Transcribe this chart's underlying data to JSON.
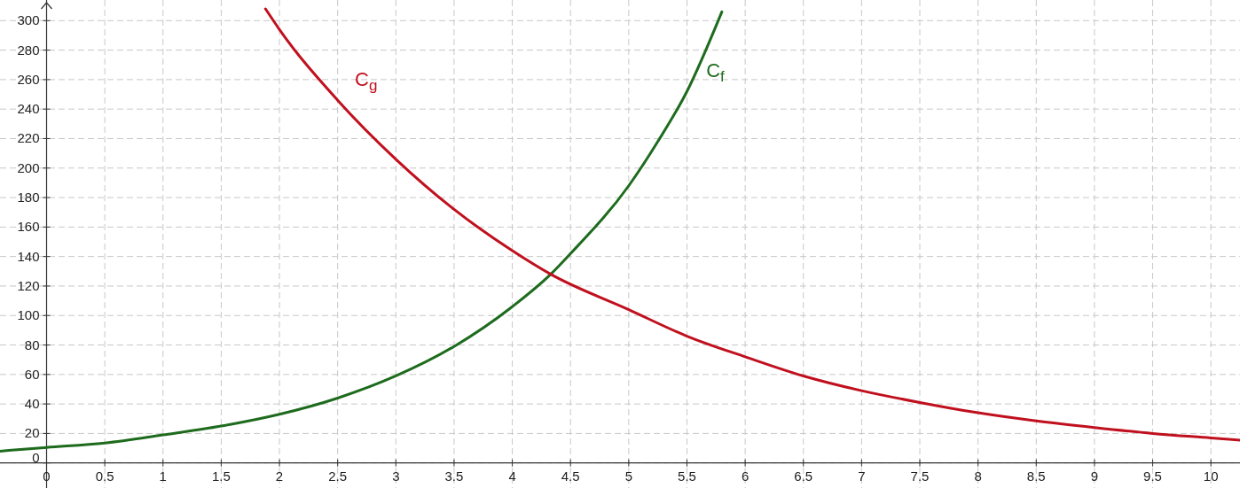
{
  "chart_data": {
    "type": "line",
    "xlim": [
      -0.4,
      10.25
    ],
    "ylim": [
      -17,
      314
    ],
    "xticks": [
      0,
      0.5,
      1,
      1.5,
      2,
      2.5,
      3,
      3.5,
      4,
      4.5,
      5,
      5.5,
      6,
      6.5,
      7,
      7.5,
      8,
      8.5,
      9,
      9.5,
      10
    ],
    "yticks": [
      0,
      20,
      40,
      60,
      80,
      100,
      120,
      140,
      160,
      180,
      200,
      220,
      240,
      260,
      280,
      300
    ],
    "grid": true,
    "line_style": "solid",
    "series": [
      {
        "color": "#1e6b1e",
        "x": [
          -0.4,
          0,
          0.5,
          1,
          1.5,
          2,
          2.5,
          3,
          3.5,
          4,
          4.33,
          4.5,
          5,
          5.25,
          5.5,
          5.8
        ],
        "values": [
          8,
          10.5,
          13.5,
          19,
          25,
          33,
          44,
          59,
          79,
          106,
          128,
          142,
          188,
          218,
          252,
          306
        ]
      },
      {
        "color": "#c0101e",
        "x": [
          1.88,
          2,
          2.5,
          3,
          3.5,
          4,
          4.33,
          5,
          5.5,
          6,
          6.5,
          7,
          7.5,
          8,
          8.5,
          9,
          9.5,
          10,
          10.25
        ],
        "values": [
          308,
          294,
          246,
          206,
          172,
          144,
          128,
          104,
          86,
          72,
          59,
          49,
          41,
          34,
          28.5,
          24,
          20,
          17,
          15.5
        ]
      }
    ],
    "annotations": [
      {
        "text": "C$_{f}$",
        "x": 5.5,
        "y": 252
      },
      {
        "text": "C$_{g}$",
        "x": 2.5,
        "y": 246
      }
    ]
  }
}
